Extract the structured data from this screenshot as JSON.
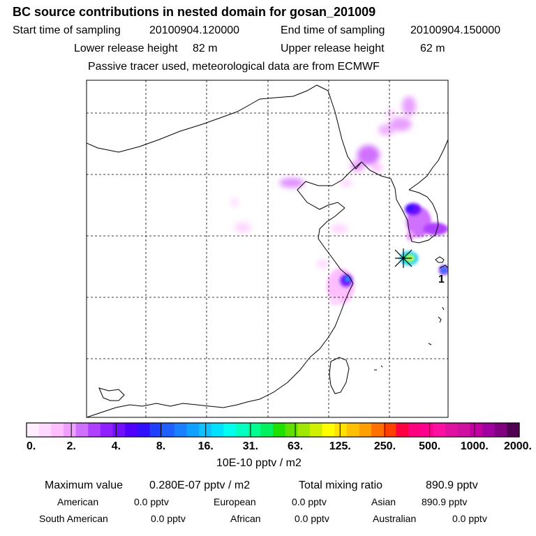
{
  "header": {
    "title": "BC  source contributions in nested domain for gosan_201009",
    "start_label": "Start time of sampling",
    "start_value": "20100904.120000",
    "end_label": "End time of sampling",
    "end_value": "20100904.150000",
    "lower_label": "Lower release height",
    "lower_value": "82 m",
    "upper_label": "Upper release height",
    "upper_value": "62 m",
    "tracer_note": "Passive tracer used, meteorological data are from ECMWF"
  },
  "chart_data": {
    "type": "heatmap",
    "title": "BC  source contributions in nested domain for gosan_201009",
    "units": "10E-10 pptv / m2",
    "receptor_marker": "gosan-receptor",
    "station_label": "1",
    "colorbar": {
      "tick_labels": [
        "0.",
        "2.",
        "4.",
        "8.",
        "16.",
        "31.",
        "63.",
        "125.",
        "250.",
        "500.",
        "1000.",
        "2000."
      ],
      "colors": [
        "#ffeeff",
        "#ffd8ff",
        "#ffbfff",
        "#f0a0ff",
        "#d070ff",
        "#b040ff",
        "#9020ff",
        "#7010ff",
        "#5000ff",
        "#3010ff",
        "#2040ff",
        "#2060ff",
        "#1a80ff",
        "#10a0ff",
        "#10c0ff",
        "#00e0ff",
        "#00ffee",
        "#00ffc0",
        "#00ff90",
        "#00f060",
        "#20e000",
        "#60e000",
        "#a0e800",
        "#d0f000",
        "#ffff00",
        "#ffe000",
        "#ffc000",
        "#ffa000",
        "#ff7000",
        "#ff4000",
        "#ff0040",
        "#ff0080",
        "#ff0090",
        "#ff10a0",
        "#e010a0",
        "#d010a0",
        "#c000a0",
        "#a000a0",
        "#800080",
        "#500050"
      ]
    },
    "plumes": [
      {
        "name": "shanghai-hotspot",
        "level": 9
      },
      {
        "name": "gosan-receptor-zone",
        "level": 20
      },
      {
        "name": "korea-hotspot",
        "level": 9
      },
      {
        "name": "japan-hotspot",
        "level": 11
      },
      {
        "name": "northeast-china",
        "level": 4
      },
      {
        "name": "far-northeast",
        "level": 3
      },
      {
        "name": "north-china",
        "level": 3
      },
      {
        "name": "bohai",
        "level": 2
      }
    ]
  },
  "footer": {
    "max_label": "Maximum value",
    "max_value": "0.280E-07 pptv / m2",
    "total_label": "Total mixing ratio",
    "total_value": "890.9 pptv",
    "american_label": "American",
    "american_value": "0.0 pptv",
    "european_label": "European",
    "european_value": "0.0 pptv",
    "asian_label": "Asian",
    "asian_value": "890.9 pptv",
    "south_american_label": "South American",
    "south_american_value": "0.0 pptv",
    "african_label": "African",
    "african_value": "0.0 pptv",
    "australian_label": "Australian",
    "australian_value": "0.0 pptv"
  }
}
